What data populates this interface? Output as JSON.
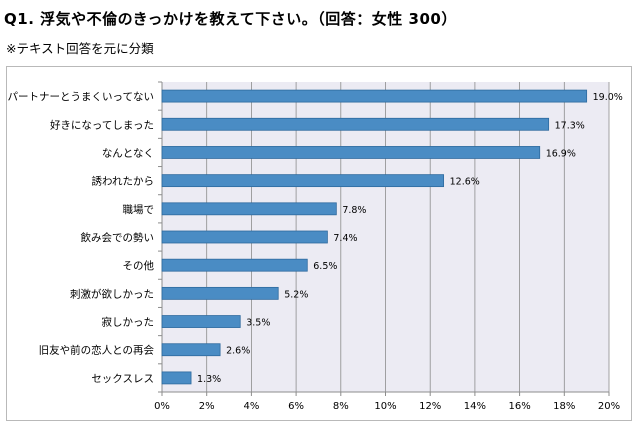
{
  "title": "Q1. 浮気や不倫のきっかけを教えて下さい。（回答：女性 300）",
  "subtitle": "※テキスト回答を元に分類",
  "chart_data": {
    "type": "bar",
    "orientation": "horizontal",
    "categories": [
      "パートナーとうまくいってない",
      "好きになってしまった",
      "なんとなく",
      "誘われたから",
      "職場で",
      "飲み会での勢い",
      "その他",
      "刺激が欲しかった",
      "寂しかった",
      "旧友や前の恋人との再会",
      "セックスレス"
    ],
    "values": [
      19.0,
      17.3,
      16.9,
      12.6,
      7.8,
      7.4,
      6.5,
      5.2,
      3.5,
      2.6,
      1.3
    ],
    "value_labels": [
      "19.0%",
      "17.3%",
      "16.9%",
      "12.6%",
      "7.8%",
      "7.4%",
      "6.5%",
      "5.2%",
      "3.5%",
      "2.6%",
      "1.3%"
    ],
    "xlim": [
      0,
      20
    ],
    "xticks": [
      0,
      2,
      4,
      6,
      8,
      10,
      12,
      14,
      16,
      18,
      20
    ],
    "xtick_labels": [
      "0%",
      "2%",
      "4%",
      "6%",
      "8%",
      "10%",
      "12%",
      "14%",
      "16%",
      "18%",
      "20%"
    ],
    "grid": "vertical",
    "legend": "none",
    "colors": {
      "bar": "#4a8cc4",
      "bar_stroke": "#2e6a9e",
      "plot_background": "#ecebf3",
      "grid": "#8c8c8c",
      "axis": "#8c8c8c"
    }
  }
}
